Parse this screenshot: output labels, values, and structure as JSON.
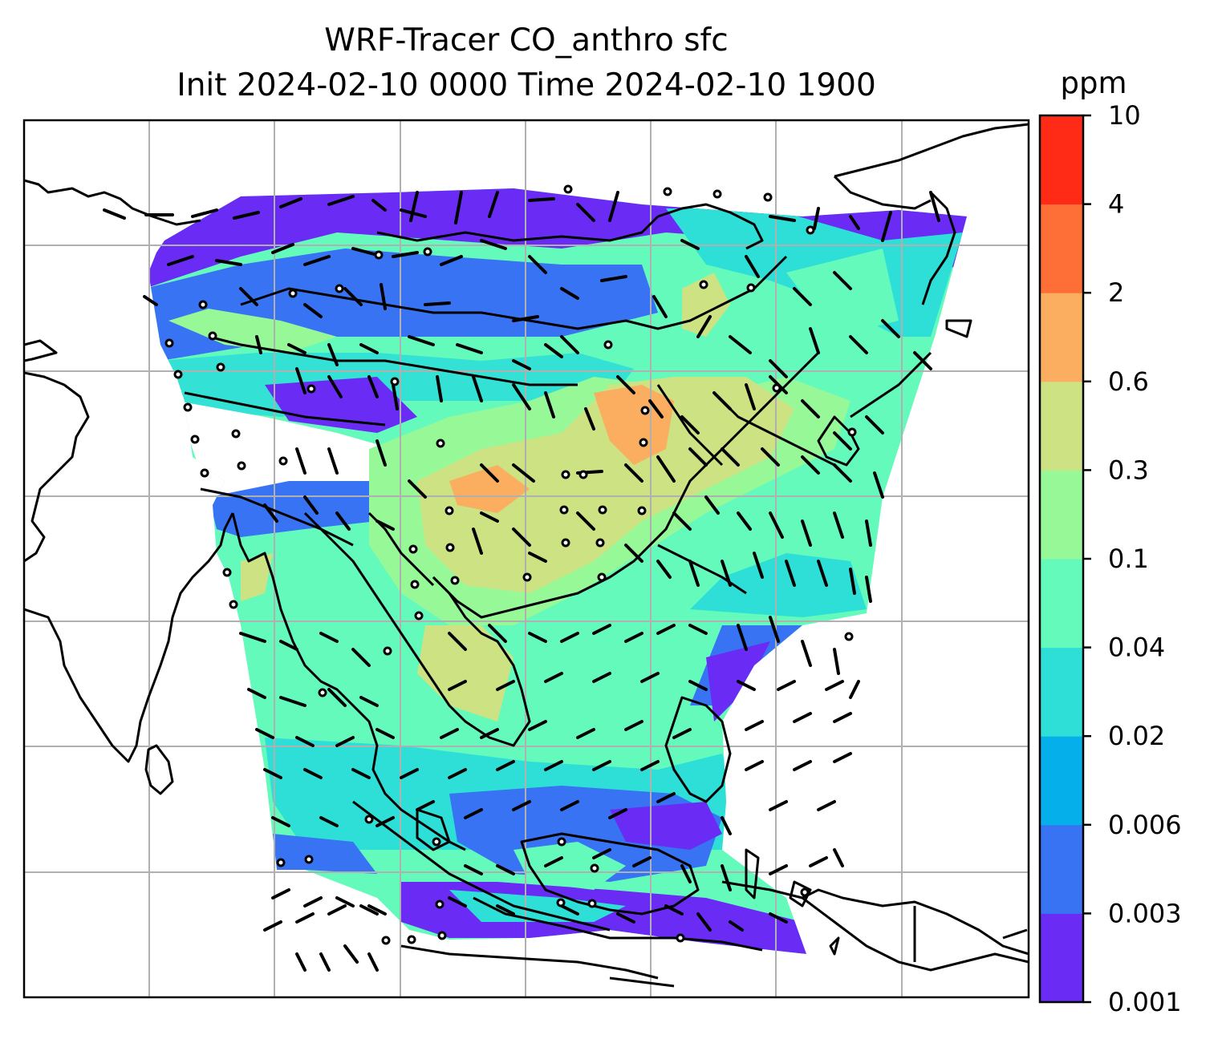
{
  "title": {
    "line1": "WRF-Tracer CO_anthro sfc",
    "line2": "Init 2024-02-10 0000 Time 2024-02-10 1900"
  },
  "colorbar": {
    "unit": "ppm",
    "levels": [
      "0.001",
      "0.003",
      "0.006",
      "0.02",
      "0.04",
      "0.1",
      "0.3",
      "0.6",
      "2",
      "4",
      "10"
    ],
    "colors": [
      "#6a2cf5",
      "#3773f3",
      "#05b0ea",
      "#2ddfd7",
      "#64fabb",
      "#97f898",
      "#cce283",
      "#fbad60",
      "#fe6f38",
      "#ff2b16"
    ]
  },
  "map": {
    "gridlines": true,
    "coastline_color": "#000000",
    "gridline_color": "#b0b0b0",
    "features": [
      "coastlines",
      "country borders",
      "wind barbs",
      "calm-wind circles",
      "CO_anthro concentration field"
    ]
  }
}
